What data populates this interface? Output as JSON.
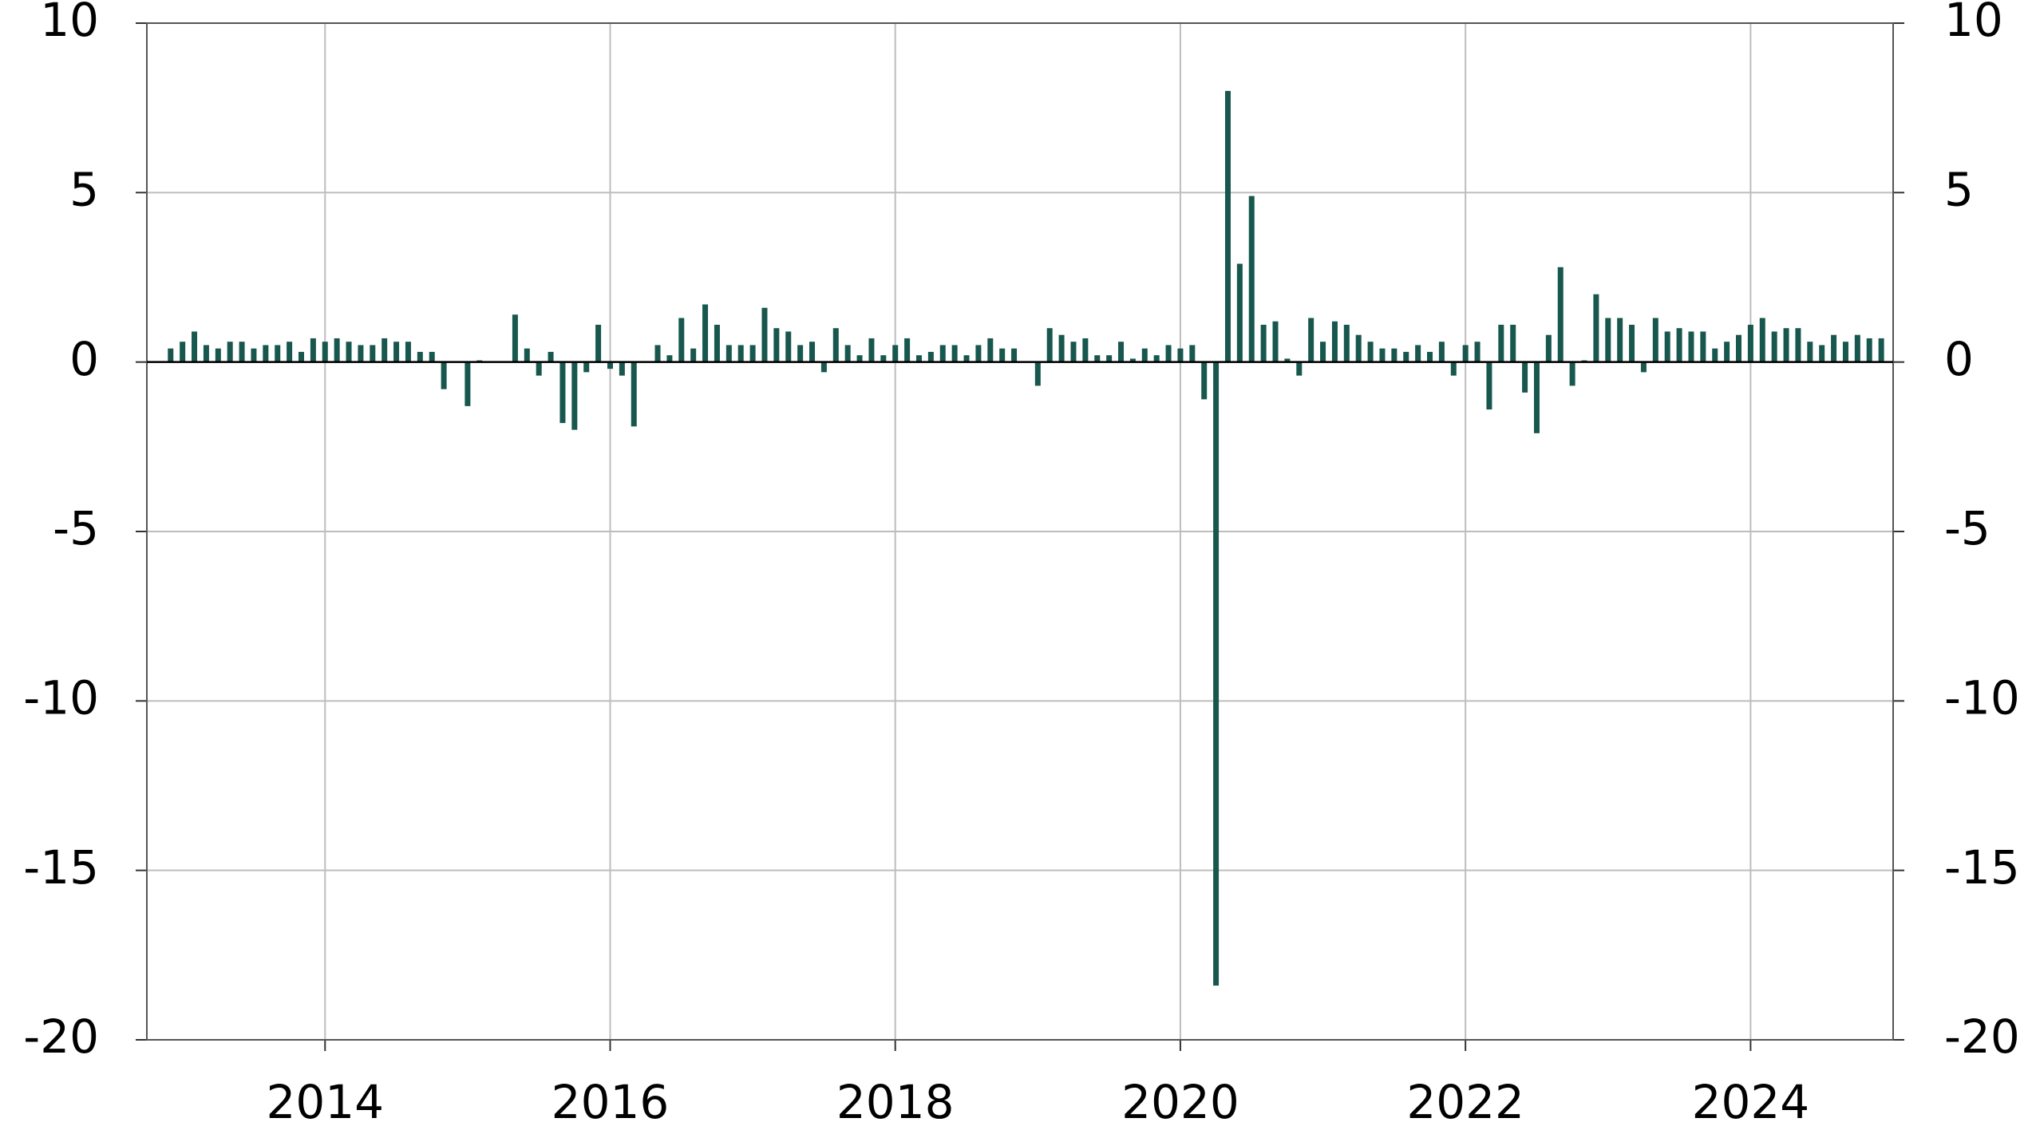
{
  "chart_data": {
    "type": "bar",
    "x": [
      "2012-12",
      "2013-01",
      "2013-02",
      "2013-03",
      "2013-04",
      "2013-05",
      "2013-06",
      "2013-07",
      "2013-08",
      "2013-09",
      "2013-10",
      "2013-11",
      "2013-12",
      "2014-01",
      "2014-02",
      "2014-03",
      "2014-04",
      "2014-05",
      "2014-06",
      "2014-07",
      "2014-08",
      "2014-09",
      "2014-10",
      "2014-11",
      "2014-12",
      "2015-01",
      "2015-02",
      "2015-03",
      "2015-04",
      "2015-05",
      "2015-06",
      "2015-07",
      "2015-08",
      "2015-09",
      "2015-10",
      "2015-11",
      "2015-12",
      "2016-01",
      "2016-02",
      "2016-03",
      "2016-04",
      "2016-05",
      "2016-06",
      "2016-07",
      "2016-08",
      "2016-09",
      "2016-10",
      "2016-11",
      "2016-12",
      "2017-01",
      "2017-02",
      "2017-03",
      "2017-04",
      "2017-05",
      "2017-06",
      "2017-07",
      "2017-08",
      "2017-09",
      "2017-10",
      "2017-11",
      "2017-12",
      "2018-01",
      "2018-02",
      "2018-03",
      "2018-04",
      "2018-05",
      "2018-06",
      "2018-07",
      "2018-08",
      "2018-09",
      "2018-10",
      "2018-11",
      "2018-12",
      "2019-01",
      "2019-02",
      "2019-03",
      "2019-04",
      "2019-05",
      "2019-06",
      "2019-07",
      "2019-08",
      "2019-09",
      "2019-10",
      "2019-11",
      "2019-12",
      "2020-01",
      "2020-02",
      "2020-03",
      "2020-04",
      "2020-05",
      "2020-06",
      "2020-07",
      "2020-08",
      "2020-09",
      "2020-10",
      "2020-11",
      "2020-12",
      "2021-01",
      "2021-02",
      "2021-03",
      "2021-04",
      "2021-05",
      "2021-06",
      "2021-07",
      "2021-08",
      "2021-09",
      "2021-10",
      "2021-11",
      "2021-12",
      "2022-01",
      "2022-02",
      "2022-03",
      "2022-04",
      "2022-05",
      "2022-06",
      "2022-07",
      "2022-08",
      "2022-09",
      "2022-10",
      "2022-11",
      "2022-12",
      "2023-01",
      "2023-02",
      "2023-03",
      "2023-04",
      "2023-05",
      "2023-06",
      "2023-07",
      "2023-08",
      "2023-09",
      "2023-10",
      "2023-11",
      "2023-12",
      "2024-01",
      "2024-02",
      "2024-03",
      "2024-04",
      "2024-05",
      "2024-06",
      "2024-07",
      "2024-08",
      "2024-09",
      "2024-10",
      "2024-11",
      "2024-12"
    ],
    "values": [
      0.4,
      0.6,
      0.9,
      0.5,
      0.4,
      0.6,
      0.6,
      0.4,
      0.5,
      0.5,
      0.6,
      0.3,
      0.7,
      0.6,
      0.7,
      0.6,
      0.5,
      0.5,
      0.7,
      0.6,
      0.6,
      0.3,
      0.3,
      -0.8,
      0,
      -1.3,
      0.05,
      0,
      0,
      1.4,
      0.4,
      -0.4,
      0.3,
      -1.8,
      -2.0,
      -0.3,
      1.1,
      -0.2,
      -0.4,
      -1.9,
      0,
      0.5,
      0.2,
      1.3,
      0.4,
      1.7,
      1.1,
      0.5,
      0.5,
      0.5,
      1.6,
      1.0,
      0.9,
      0.5,
      0.6,
      -0.3,
      1.0,
      0.5,
      0.2,
      0.7,
      0.2,
      0.5,
      0.7,
      0.2,
      0.3,
      0.5,
      0.5,
      0.2,
      0.5,
      0.7,
      0.4,
      0.4,
      0,
      -0.7,
      1.0,
      0.8,
      0.6,
      0.7,
      0.2,
      0.2,
      0.6,
      0.1,
      0.4,
      0.2,
      0.5,
      0.4,
      0.5,
      -1.1,
      -18.4,
      8.0,
      2.9,
      4.9,
      1.1,
      1.2,
      0.1,
      -0.4,
      1.3,
      0.6,
      1.2,
      1.1,
      0.8,
      0.6,
      0.4,
      0.4,
      0.3,
      0.5,
      0.3,
      0.6,
      -0.4,
      0.5,
      0.6,
      -1.4,
      1.1,
      1.1,
      -0.9,
      -2.1,
      0.8,
      2.8,
      -0.7,
      0.05,
      2.0,
      1.3,
      1.3,
      1.1,
      -0.3,
      1.3,
      0.9,
      1.0,
      0.9,
      0.9,
      0.4,
      0.6,
      0.8,
      1.1,
      1.3,
      0.9,
      1.0,
      1.0,
      0.6,
      0.5,
      0.8,
      0.6,
      0.8,
      0.7,
      0.7
    ],
    "color": "#17574e",
    "xlim": [
      "2012-10",
      "2025-01"
    ],
    "xticks": [
      {
        "value": "2014-01",
        "label": "2014"
      },
      {
        "value": "2016-01",
        "label": "2016"
      },
      {
        "value": "2018-01",
        "label": "2018"
      },
      {
        "value": "2020-01",
        "label": "2020"
      },
      {
        "value": "2022-01",
        "label": "2022"
      },
      {
        "value": "2024-01",
        "label": "2024"
      }
    ],
    "ylim": [
      -20,
      10
    ],
    "yticks": [
      -20,
      -15,
      -10,
      -5,
      0,
      5,
      10
    ],
    "grid": true
  }
}
